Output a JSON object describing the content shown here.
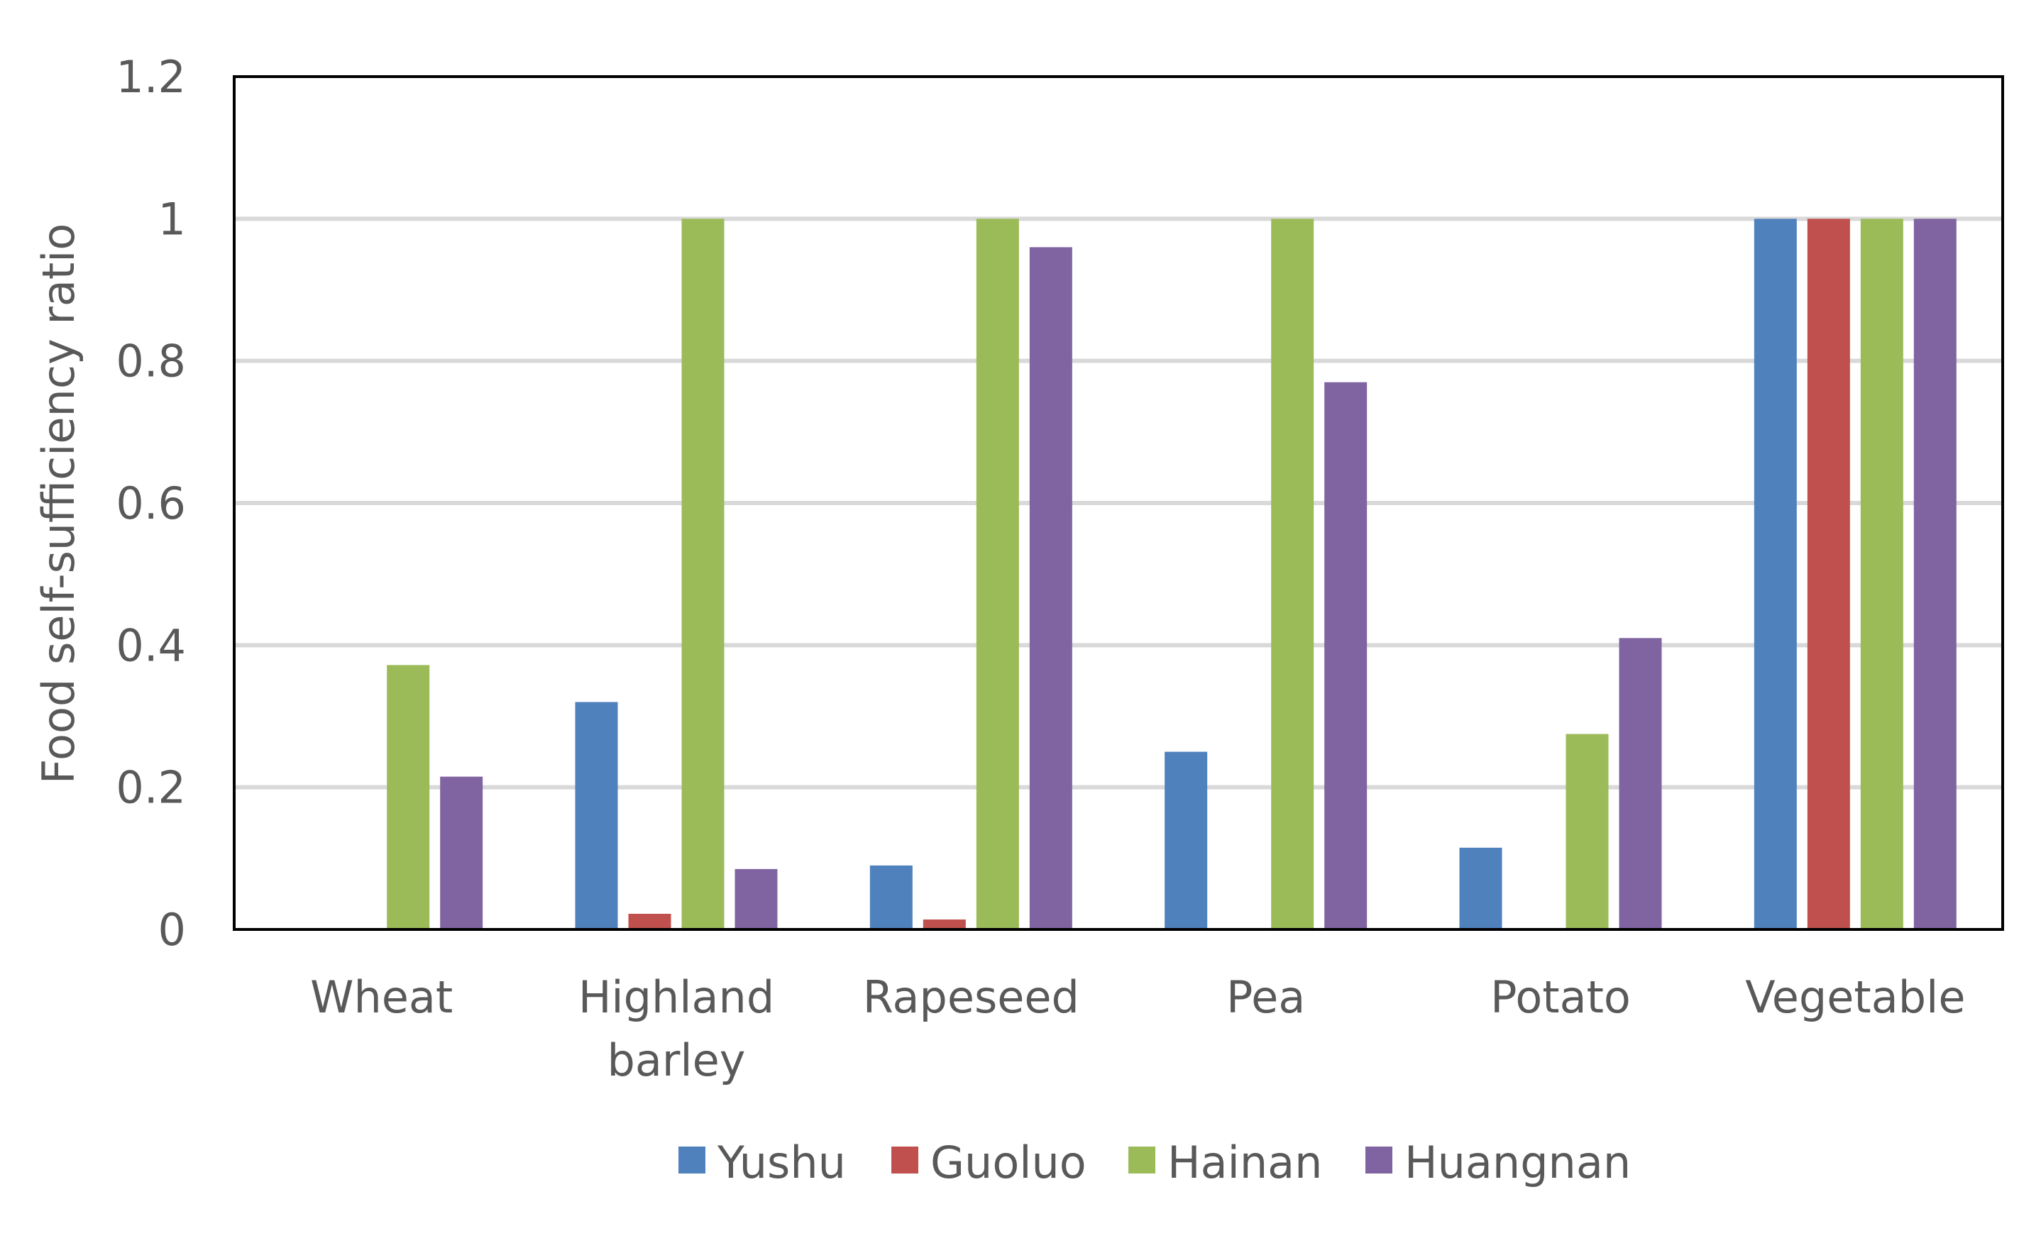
{
  "chart_data": {
    "type": "bar",
    "ylabel": "Food self-sufficiency ratio",
    "ylim": [
      0,
      1.2
    ],
    "yticks": [
      "0",
      "0.2",
      "0.4",
      "0.6",
      "0.8",
      "1",
      "1.2"
    ],
    "categories": [
      [
        "Wheat"
      ],
      [
        "Highland",
        "barley"
      ],
      [
        "Rapeseed"
      ],
      [
        "Pea"
      ],
      [
        "Potato"
      ],
      [
        "Vegetable"
      ]
    ],
    "series": [
      {
        "name": "Yushu",
        "color": "#4F81BD",
        "values": [
          0,
          0.32,
          0.09,
          0.25,
          0.115,
          1.0
        ]
      },
      {
        "name": "Guoluo",
        "color": "#C0504D",
        "values": [
          0,
          0.022,
          0.014,
          0,
          0,
          1.0
        ]
      },
      {
        "name": "Hainan",
        "color": "#9BBB59",
        "values": [
          0.372,
          1.0,
          1.0,
          1.0,
          0.275,
          1.0
        ]
      },
      {
        "name": "Huangnan",
        "color": "#8064A2",
        "values": [
          0.215,
          0.085,
          0.96,
          0.77,
          0.41,
          1.0
        ]
      }
    ],
    "grid": true,
    "legend_position": "bottom"
  }
}
